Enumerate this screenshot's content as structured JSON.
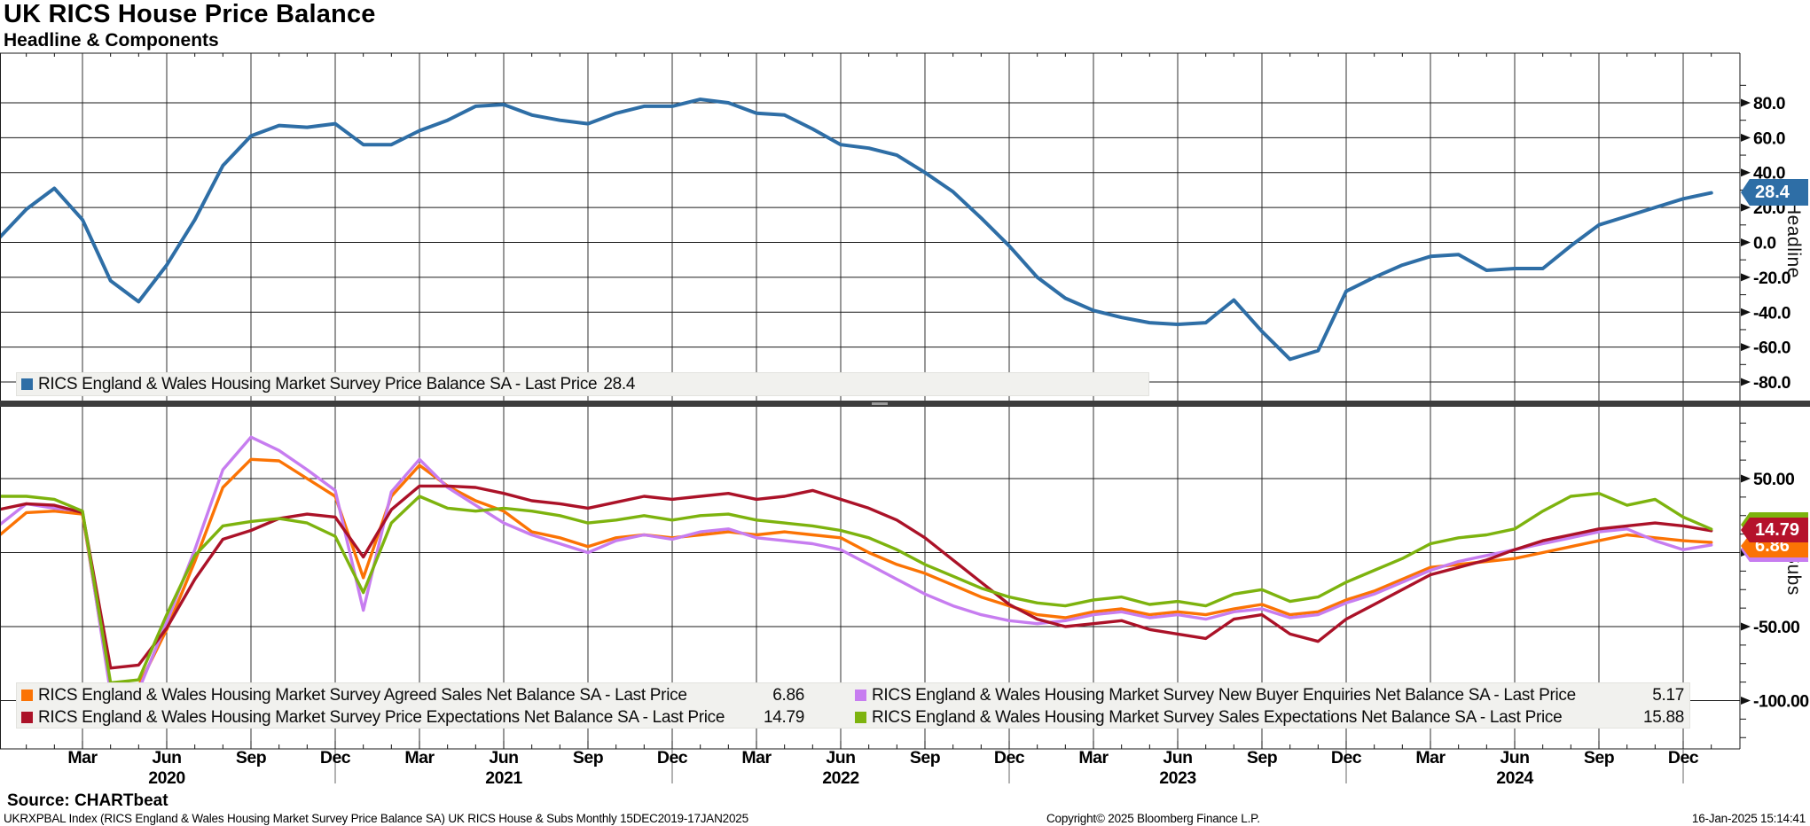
{
  "title": "UK RICS House Price Balance",
  "subtitle": "Headline & Components",
  "source_line": "Source: CHARTbeat",
  "footer": {
    "left": "UKRXPBAL Index (RICS England & Wales Housing Market Survey Price Balance SA) UK RICS House & Subs  Monthly 15DEC2019-17JAN2025",
    "copyright": "Copyright© 2025 Bloomberg Finance L.P.",
    "timestamp": "16-Jan-2025 15:14:41"
  },
  "tags": {
    "headline": {
      "text": "28.4",
      "color": "#2e6ea6"
    },
    "red": {
      "text": "14.79",
      "color": "#b5122b"
    },
    "orange": {
      "text": "6.86",
      "color": "#fb7304"
    },
    "green": {
      "text": "15.88",
      "color": "#7db30e"
    },
    "purple": {
      "text": "5.17",
      "color": "#c77df0"
    }
  },
  "chart_data": {
    "type": "line",
    "x_unit": "month",
    "x_range": [
      "Dec 2019",
      "Jan 2025"
    ],
    "grid": true,
    "months": [
      "Dec19",
      "Jan20",
      "Feb20",
      "Mar20",
      "Apr20",
      "May20",
      "Jun20",
      "Jul20",
      "Aug20",
      "Sep20",
      "Oct20",
      "Nov20",
      "Dec20",
      "Jan21",
      "Feb21",
      "Mar21",
      "Apr21",
      "May21",
      "Jun21",
      "Jul21",
      "Aug21",
      "Sep21",
      "Oct21",
      "Nov21",
      "Dec21",
      "Jan22",
      "Feb22",
      "Mar22",
      "Apr22",
      "May22",
      "Jun22",
      "Jul22",
      "Aug22",
      "Sep22",
      "Oct22",
      "Nov22",
      "Dec22",
      "Jan23",
      "Feb23",
      "Mar23",
      "Apr23",
      "May23",
      "Jun23",
      "Jul23",
      "Aug23",
      "Sep23",
      "Oct23",
      "Nov23",
      "Dec23",
      "Jan24",
      "Feb24",
      "Mar24",
      "Apr24",
      "May24",
      "Jun24",
      "Jul24",
      "Aug24",
      "Sep24",
      "Oct24",
      "Nov24",
      "Dec24",
      "Jan25"
    ],
    "x_quarter_ticks": [
      {
        "m": 3,
        "text": "Mar"
      },
      {
        "m": 6,
        "text": "Jun",
        "year": "2020"
      },
      {
        "m": 9,
        "text": "Sep"
      },
      {
        "m": 12,
        "text": "Dec"
      },
      {
        "m": 15,
        "text": "Mar"
      },
      {
        "m": 18,
        "text": "Jun",
        "year": "2021"
      },
      {
        "m": 21,
        "text": "Sep"
      },
      {
        "m": 24,
        "text": "Dec"
      },
      {
        "m": 27,
        "text": "Mar"
      },
      {
        "m": 30,
        "text": "Jun",
        "year": "2022"
      },
      {
        "m": 33,
        "text": "Sep"
      },
      {
        "m": 36,
        "text": "Dec"
      },
      {
        "m": 39,
        "text": "Mar"
      },
      {
        "m": 42,
        "text": "Jun",
        "year": "2023"
      },
      {
        "m": 45,
        "text": "Sep"
      },
      {
        "m": 48,
        "text": "Dec"
      },
      {
        "m": 51,
        "text": "Mar"
      },
      {
        "m": 54,
        "text": "Jun",
        "year": "2024"
      },
      {
        "m": 57,
        "text": "Sep"
      },
      {
        "m": 60,
        "text": "Dec"
      }
    ],
    "panels": [
      {
        "name": "Headline",
        "axis_label": "Headline",
        "ylim": [
          -95,
          108
        ],
        "yticks": [
          {
            "v": 80,
            "label": "80.0"
          },
          {
            "v": 60,
            "label": "60.0"
          },
          {
            "v": 40,
            "label": "40.0"
          },
          {
            "v": 20,
            "label": "20.0"
          },
          {
            "v": 0,
            "label": "0.0"
          },
          {
            "v": -20,
            "label": "-20.0"
          },
          {
            "v": -40,
            "label": "-40.0"
          },
          {
            "v": -60,
            "label": "-60.0"
          },
          {
            "v": -80,
            "label": "-80.0"
          }
        ],
        "legend": [
          {
            "label": "RICS England & Wales Housing Market Survey Price Balance SA - Last Price",
            "value": "28.4"
          }
        ],
        "series": [
          {
            "name": "RICS England & Wales Housing Market Survey Price Balance SA",
            "color": "#2e6ea6",
            "last_price": 28.4,
            "values": [
              2,
              19,
              31,
              13,
              -22,
              -34,
              -13,
              13,
              44,
              61,
              67,
              66,
              68,
              56,
              56,
              64,
              70,
              78,
              79,
              73,
              70,
              68,
              74,
              78,
              78,
              82,
              80,
              74,
              73,
              65,
              56,
              54,
              50,
              40,
              29,
              14,
              -2,
              -20,
              -32,
              -39,
              -43,
              -46,
              -47,
              -46,
              -33,
              -51,
              -67,
              -62,
              -28,
              -20,
              -13,
              -8,
              -7,
              -16,
              -15,
              -15,
              -2,
              10,
              15,
              20,
              25,
              28.4
            ]
          }
        ]
      },
      {
        "name": "Subs",
        "axis_label": "Subs",
        "ylim": [
          -110,
          97
        ],
        "yticks": [
          {
            "v": 50,
            "label": "50.00"
          },
          {
            "v": 0,
            "label": "0.00"
          },
          {
            "v": -50,
            "label": "-50.00"
          },
          {
            "v": -100,
            "label": "-100.00"
          }
        ],
        "legend": [
          {
            "label": "RICS England & Wales Housing Market Survey Agreed Sales Net Balance SA - Last Price",
            "value": "6.86"
          },
          {
            "label": "RICS England & Wales Housing Market Survey New Buyer Enquiries Net Balance SA - Last Price",
            "value": "5.17"
          },
          {
            "label": "RICS England & Wales Housing Market Survey Price Expectations Net Balance SA - Last Price",
            "value": "14.79"
          },
          {
            "label": "RICS England & Wales Housing Market Survey Sales Expectations Net Balance SA - Last Price",
            "value": "15.88"
          }
        ],
        "series": [
          {
            "name": "RICS England & Wales Housing Market Survey Agreed Sales Net Balance SA",
            "color": "#fb7304",
            "last_price": 6.86,
            "values": [
              11,
              27,
              28,
              26,
              -92,
              -90,
              -52,
              -6,
              44,
              63,
              62,
              50,
              38,
              -17,
              38,
              59,
              45,
              35,
              28,
              14,
              10,
              4,
              10,
              12,
              10,
              12,
              14,
              12,
              14,
              12,
              10,
              0,
              -8,
              -14,
              -22,
              -30,
              -36,
              -42,
              -44,
              -40,
              -38,
              -42,
              -40,
              -42,
              -38,
              -35,
              -42,
              -40,
              -32,
              -26,
              -18,
              -10,
              -8,
              -6,
              -4,
              0,
              4,
              8,
              12,
              10,
              8,
              6.86
            ]
          },
          {
            "name": "RICS England & Wales Housing Market Survey New Buyer Enquiries Net Balance SA",
            "color": "#c77df0",
            "last_price": 5.17,
            "values": [
              18,
              33,
              30,
              28,
              -95,
              -93,
              -47,
              2,
              56,
              78,
              69,
              56,
              42,
              -39,
              41,
              63,
              44,
              32,
              20,
              12,
              6,
              0,
              8,
              12,
              9,
              14,
              16,
              10,
              8,
              6,
              2,
              -8,
              -18,
              -28,
              -36,
              -42,
              -46,
              -48,
              -46,
              -42,
              -40,
              -44,
              -42,
              -45,
              -40,
              -38,
              -44,
              -42,
              -34,
              -28,
              -20,
              -12,
              -6,
              -2,
              2,
              6,
              10,
              14,
              16,
              8,
              2,
              5.17
            ]
          },
          {
            "name": "RICS England & Wales Housing Market Survey Price Expectations Net Balance SA",
            "color": "#ab1228",
            "last_price": 14.79,
            "values": [
              29,
              33,
              32,
              27,
              -78,
              -76,
              -51,
              -18,
              9,
              15,
              23,
              26,
              24,
              -3,
              29,
              45,
              45,
              44,
              40,
              35,
              33,
              30,
              34,
              38,
              36,
              38,
              40,
              36,
              38,
              42,
              36,
              30,
              22,
              10,
              -5,
              -20,
              -35,
              -45,
              -50,
              -48,
              -46,
              -52,
              -55,
              -58,
              -45,
              -42,
              -55,
              -60,
              -45,
              -35,
              -25,
              -15,
              -10,
              -5,
              2,
              8,
              12,
              16,
              18,
              20,
              18,
              14.79
            ]
          },
          {
            "name": "RICS England & Wales Housing Market Survey Sales Expectations Net Balance SA",
            "color": "#7db30e",
            "last_price": 15.88,
            "values": [
              38,
              38,
              36,
              28,
              -88,
              -86,
              -42,
              -2,
              18,
              21,
              23,
              20,
              11,
              -27,
              20,
              38,
              30,
              28,
              30,
              28,
              25,
              20,
              22,
              25,
              22,
              25,
              26,
              22,
              20,
              18,
              15,
              10,
              2,
              -8,
              -16,
              -24,
              -30,
              -34,
              -36,
              -32,
              -30,
              -35,
              -33,
              -36,
              -28,
              -25,
              -33,
              -30,
              -20,
              -12,
              -4,
              6,
              10,
              12,
              16,
              28,
              38,
              40,
              32,
              36,
              24,
              15.88
            ]
          }
        ]
      }
    ]
  }
}
